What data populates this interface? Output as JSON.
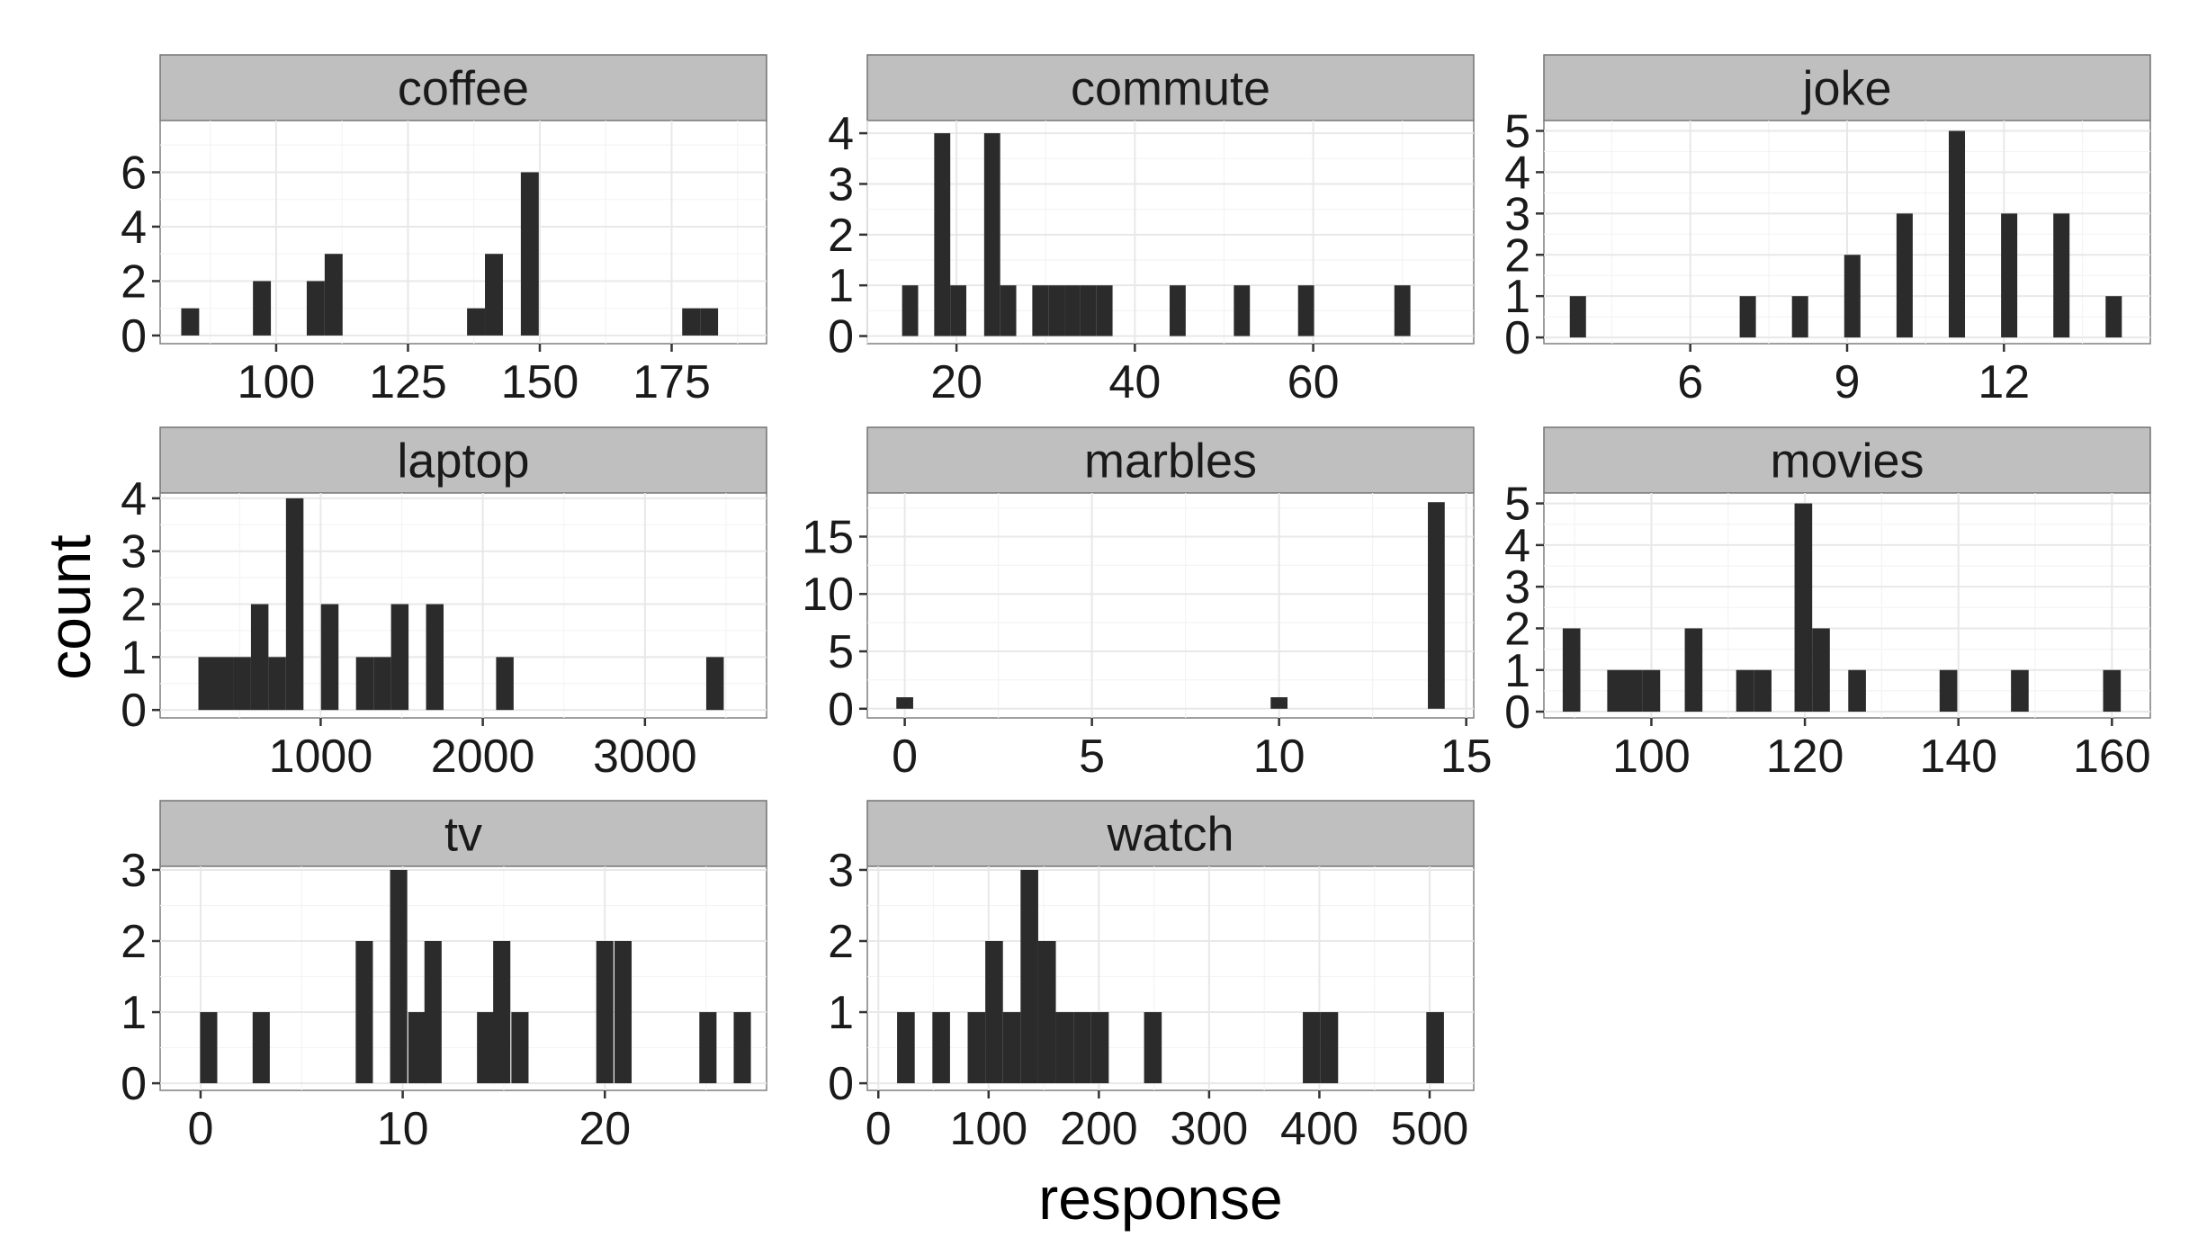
{
  "chart_data": {
    "type": "bar",
    "subtype": "faceted-histogram",
    "xlabel": "response",
    "ylabel": "count",
    "grid": true,
    "legend": "none",
    "bar_color": "#2b2b2b",
    "strip_color": "#bfbfbf",
    "facets": [
      {
        "name": "coffee",
        "xlim": [
          78,
          193
        ],
        "ylim": [
          -0.3,
          7.9
        ],
        "xticks": [
          100,
          125,
          150,
          175
        ],
        "yticks": [
          0,
          2,
          4,
          6
        ],
        "bin_width": 3.4,
        "bins": [
          [
            83.7,
            1
          ],
          [
            97.3,
            2
          ],
          [
            107.5,
            2
          ],
          [
            110.9,
            3
          ],
          [
            137.9,
            1
          ],
          [
            141.3,
            3
          ],
          [
            148.1,
            6
          ],
          [
            178.7,
            1
          ],
          [
            182.1,
            1
          ]
        ]
      },
      {
        "name": "commute",
        "xlim": [
          10,
          78
        ],
        "ylim": [
          -0.15,
          4.25
        ],
        "xticks": [
          20,
          40,
          60
        ],
        "yticks": [
          0,
          1,
          2,
          3,
          4
        ],
        "bin_width": 1.8,
        "bins": [
          [
            14.8,
            1
          ],
          [
            18.4,
            4
          ],
          [
            20.2,
            1
          ],
          [
            24.0,
            4
          ],
          [
            25.8,
            1
          ],
          [
            29.4,
            1
          ],
          [
            31.2,
            1
          ],
          [
            33.0,
            1
          ],
          [
            34.8,
            1
          ],
          [
            36.6,
            1
          ],
          [
            44.8,
            1
          ],
          [
            52.0,
            1
          ],
          [
            59.2,
            1
          ],
          [
            70.0,
            1
          ]
        ]
      },
      {
        "name": "joke",
        "xlim": [
          3.2,
          14.8
        ],
        "ylim": [
          -0.15,
          5.25
        ],
        "xticks": [
          6,
          9,
          12
        ],
        "yticks": [
          0,
          1,
          2,
          3,
          4,
          5
        ],
        "bin_width": 0.31,
        "bins": [
          [
            3.85,
            1
          ],
          [
            7.1,
            1
          ],
          [
            8.1,
            1
          ],
          [
            9.1,
            2
          ],
          [
            10.1,
            3
          ],
          [
            11.1,
            5
          ],
          [
            12.1,
            3
          ],
          [
            13.1,
            3
          ],
          [
            14.1,
            1
          ]
        ]
      },
      {
        "name": "laptop",
        "xlim": [
          10,
          3750
        ],
        "ylim": [
          -0.15,
          4.1
        ],
        "xticks": [
          1000,
          2000,
          3000
        ],
        "yticks": [
          0,
          1,
          2,
          3,
          4
        ],
        "bin_width": 108,
        "bins": [
          [
            300,
            1
          ],
          [
            408,
            1
          ],
          [
            516,
            1
          ],
          [
            624,
            2
          ],
          [
            732,
            1
          ],
          [
            840,
            4
          ],
          [
            1056,
            2
          ],
          [
            1272,
            1
          ],
          [
            1380,
            1
          ],
          [
            1488,
            2
          ],
          [
            1704,
            2
          ],
          [
            2136,
            1
          ],
          [
            3432,
            1
          ]
        ]
      },
      {
        "name": "marbles",
        "xlim": [
          -1,
          15.2
        ],
        "ylim": [
          -0.8,
          18.8
        ],
        "xticks": [
          0,
          5,
          10,
          15
        ],
        "yticks": [
          0,
          5,
          10,
          15
        ],
        "bin_width": 0.45,
        "bins": [
          [
            0,
            1
          ],
          [
            10,
            1
          ],
          [
            14.2,
            18
          ]
        ]
      },
      {
        "name": "movies",
        "xlim": [
          86,
          165
        ],
        "ylim": [
          -0.15,
          5.25
        ],
        "xticks": [
          100,
          120,
          140,
          160
        ],
        "yticks": [
          0,
          1,
          2,
          3,
          4,
          5
        ],
        "bin_width": 2.3,
        "bins": [
          [
            89.6,
            2
          ],
          [
            95.4,
            1
          ],
          [
            97.7,
            1
          ],
          [
            100.0,
            1
          ],
          [
            105.5,
            2
          ],
          [
            112.2,
            1
          ],
          [
            114.5,
            1
          ],
          [
            119.8,
            5
          ],
          [
            122.1,
            2
          ],
          [
            126.8,
            1
          ],
          [
            138.7,
            1
          ],
          [
            148.0,
            1
          ],
          [
            160.0,
            1
          ]
        ]
      },
      {
        "name": "tv",
        "xlim": [
          -2,
          28
        ],
        "ylim": [
          -0.1,
          3.05
        ],
        "xticks": [
          0,
          10,
          20
        ],
        "yticks": [
          0,
          1,
          2,
          3
        ],
        "bin_width": 0.85,
        "bins": [
          [
            0.4,
            1
          ],
          [
            3.0,
            1
          ],
          [
            8.1,
            2
          ],
          [
            9.8,
            3
          ],
          [
            10.7,
            1
          ],
          [
            11.5,
            2
          ],
          [
            14.1,
            1
          ],
          [
            14.9,
            2
          ],
          [
            15.8,
            1
          ],
          [
            20.0,
            2
          ],
          [
            20.9,
            2
          ],
          [
            25.1,
            1
          ],
          [
            26.8,
            1
          ]
        ]
      },
      {
        "name": "watch",
        "xlim": [
          -10,
          540
        ],
        "ylim": [
          -0.1,
          3.05
        ],
        "xticks": [
          0,
          100,
          200,
          300,
          400,
          500
        ],
        "yticks": [
          0,
          1,
          2,
          3
        ],
        "bin_width": 16,
        "bins": [
          [
            25,
            1
          ],
          [
            57,
            1
          ],
          [
            89,
            1
          ],
          [
            105,
            2
          ],
          [
            121,
            1
          ],
          [
            137,
            3
          ],
          [
            153,
            2
          ],
          [
            169,
            1
          ],
          [
            185,
            1
          ],
          [
            201,
            1
          ],
          [
            249,
            1
          ],
          [
            393,
            1
          ],
          [
            409,
            1
          ],
          [
            505,
            1
          ]
        ]
      }
    ]
  }
}
